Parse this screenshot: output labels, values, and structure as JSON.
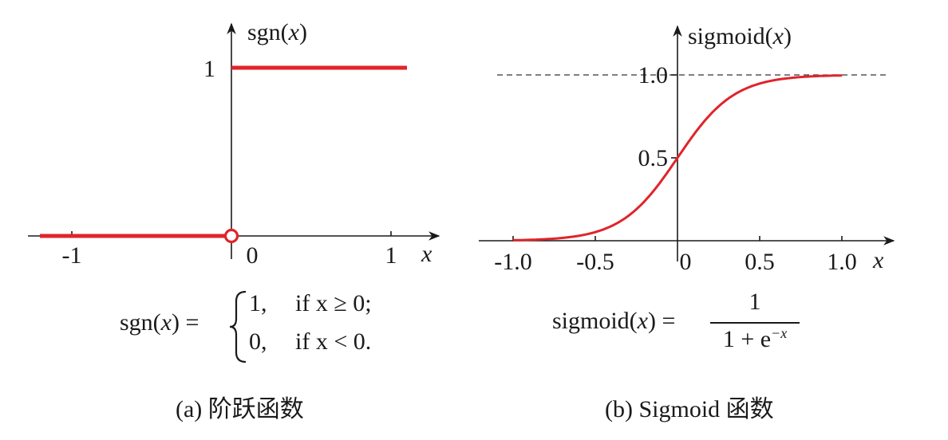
{
  "chart_data": [
    {
      "type": "line",
      "panel": "a",
      "ylabel": "sgn(x)",
      "xlabel": "x",
      "xlim": [
        -1.2,
        1.1
      ],
      "ylim": [
        0,
        1
      ],
      "x_ticks": [
        {
          "value": -1,
          "label": "-1"
        },
        {
          "value": 0,
          "label": "0"
        },
        {
          "value": 1,
          "label": "1"
        }
      ],
      "y_ticks": [
        {
          "value": 1,
          "label": "1"
        }
      ],
      "series": [
        {
          "segments": [
            {
              "x": [
                -1.2,
                0
              ],
              "y": [
                0,
                0
              ],
              "end": "open-circle"
            },
            {
              "x": [
                0,
                1.1
              ],
              "y": [
                1,
                1
              ]
            }
          ]
        }
      ],
      "formula": {
        "lhs": "sgn(x) =",
        "cases": [
          {
            "value": "1,",
            "condition": "if x ≥ 0;"
          },
          {
            "value": "0,",
            "condition": "if x < 0."
          }
        ]
      },
      "caption": "(a) 阶跃函数"
    },
    {
      "type": "line",
      "panel": "b",
      "ylabel": "sigmoid(x)",
      "xlabel": "x",
      "xlim": [
        -1.1,
        1.1
      ],
      "ylim": [
        0,
        1.0
      ],
      "asymptote": 1.0,
      "x_ticks": [
        {
          "value": -1.0,
          "label": "-1.0"
        },
        {
          "value": -0.5,
          "label": "-0.5"
        },
        {
          "value": 0,
          "label": "0"
        },
        {
          "value": 0.5,
          "label": "0.5"
        },
        {
          "value": 1.0,
          "label": "1.0"
        }
      ],
      "y_ticks": [
        {
          "value": 0.5,
          "label": "0.5"
        },
        {
          "value": 1.0,
          "label": "1.0"
        }
      ],
      "series": [
        {
          "function": "1/(1+e^-x)",
          "x_display_scale": 0.1,
          "x_range": [
            -1.35,
            1.35
          ]
        }
      ],
      "formula": {
        "lhs": "sigmoid(x) =",
        "numerator": "1",
        "denominator": "1 + e",
        "exponent": "−x"
      },
      "caption": "(b) Sigmoid 函数"
    }
  ]
}
